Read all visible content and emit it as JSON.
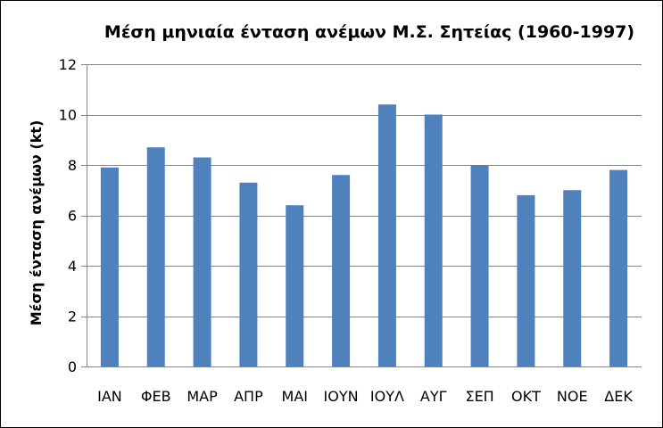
{
  "chart_data": {
    "type": "bar",
    "title": "Μέση μηνιαία ένταση ανέμων Μ.Σ. Σητείας (1960-1997)",
    "xlabel": "",
    "ylabel": "Μέση ένταση ανέμων (kt)",
    "categories": [
      "ΙΑΝ",
      "ΦΕΒ",
      "ΜΑΡ",
      "ΑΠΡ",
      "ΜΑΙ",
      "ΙΟΥΝ",
      "ΙΟΥΛ",
      "ΑΥΓ",
      "ΣΕΠ",
      "ΟΚΤ",
      "ΝΟΕ",
      "ΔΕΚ"
    ],
    "values": [
      7.9,
      8.7,
      8.3,
      7.3,
      6.4,
      7.6,
      10.4,
      10.0,
      8.0,
      6.8,
      7.0,
      7.8
    ],
    "ylim": [
      0,
      12
    ],
    "yticks": [
      0,
      2,
      4,
      6,
      8,
      10,
      12
    ],
    "grid": true,
    "legend": "none",
    "bar_color": "#4f81bd",
    "grid_color": "#868686"
  }
}
